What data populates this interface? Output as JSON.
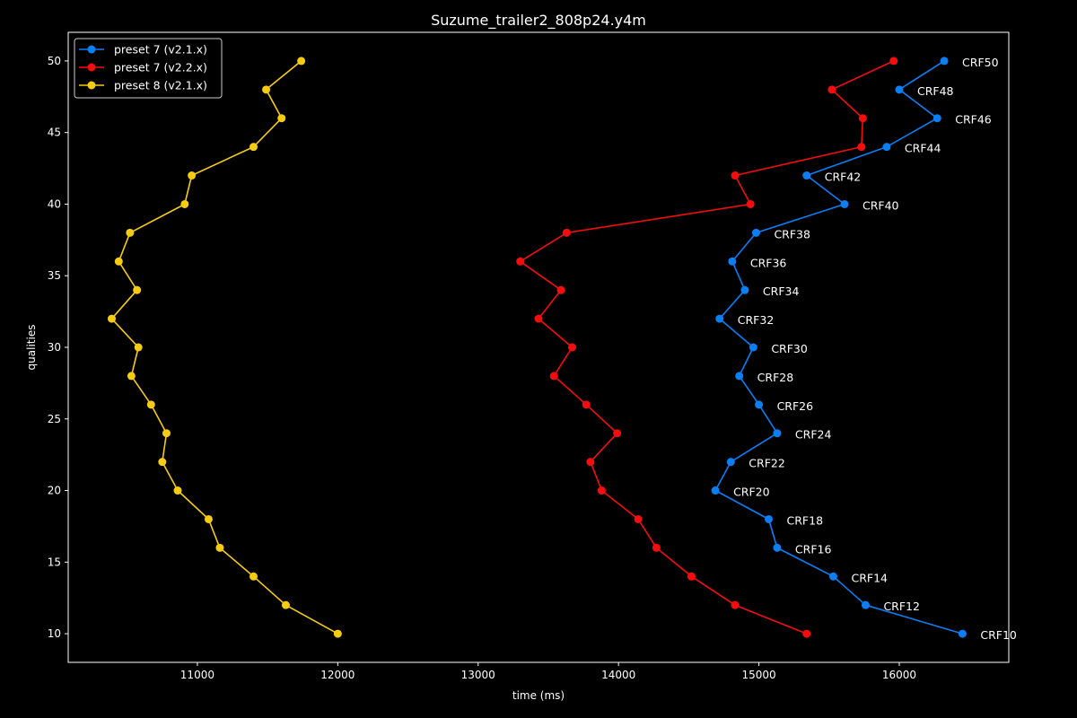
{
  "chart_data": {
    "type": "line",
    "title": "Suzume_trailer2_808p24.y4m",
    "xlabel": "time (ms)",
    "ylabel": "qualities",
    "xlim": [
      10080,
      16780
    ],
    "ylim": [
      8.0,
      52.0
    ],
    "xticks": [
      11000,
      12000,
      13000,
      14000,
      15000,
      16000
    ],
    "yticks": [
      10,
      15,
      20,
      25,
      30,
      35,
      40,
      45,
      50
    ],
    "grid": false,
    "legend_position": "top-left",
    "colors": {
      "background": "#000000",
      "axes": "#ffffff",
      "text": "#ffffff"
    },
    "series": [
      {
        "name": "preset 7 (v2.1.x)",
        "color": "#0a7ef5",
        "points": [
          [
            16450,
            10
          ],
          [
            15760,
            12
          ],
          [
            15530,
            14
          ],
          [
            15130,
            16
          ],
          [
            15070,
            18
          ],
          [
            14690,
            20
          ],
          [
            14800,
            22
          ],
          [
            15130,
            24
          ],
          [
            15000,
            26
          ],
          [
            14860,
            28
          ],
          [
            14960,
            30
          ],
          [
            14720,
            32
          ],
          [
            14900,
            34
          ],
          [
            14810,
            36
          ],
          [
            14980,
            38
          ],
          [
            15610,
            40
          ],
          [
            15340,
            42
          ],
          [
            15910,
            44
          ],
          [
            16270,
            46
          ],
          [
            16000,
            48
          ],
          [
            16320,
            50
          ]
        ]
      },
      {
        "name": "preset 7 (v2.2.x)",
        "color": "#f50d0d",
        "points": [
          [
            15340,
            10
          ],
          [
            14830,
            12
          ],
          [
            14520,
            14
          ],
          [
            14270,
            16
          ],
          [
            14140,
            18
          ],
          [
            13880,
            20
          ],
          [
            13800,
            22
          ],
          [
            13990,
            24
          ],
          [
            13770,
            26
          ],
          [
            13540,
            28
          ],
          [
            13670,
            30
          ],
          [
            13430,
            32
          ],
          [
            13590,
            34
          ],
          [
            13300,
            36
          ],
          [
            13630,
            38
          ],
          [
            14940,
            40
          ],
          [
            14830,
            42
          ],
          [
            15730,
            44
          ],
          [
            15740,
            46
          ],
          [
            15520,
            48
          ],
          [
            15960,
            50
          ]
        ]
      },
      {
        "name": "preset 8 (v2.1.x)",
        "color": "#f5cc12",
        "points": [
          [
            12000,
            10
          ],
          [
            11630,
            12
          ],
          [
            11400,
            14
          ],
          [
            11160,
            16
          ],
          [
            11080,
            18
          ],
          [
            10860,
            20
          ],
          [
            10750,
            22
          ],
          [
            10780,
            24
          ],
          [
            10670,
            26
          ],
          [
            10530,
            28
          ],
          [
            10580,
            30
          ],
          [
            10390,
            32
          ],
          [
            10570,
            34
          ],
          [
            10440,
            36
          ],
          [
            10520,
            38
          ],
          [
            10910,
            40
          ],
          [
            10960,
            42
          ],
          [
            11400,
            44
          ],
          [
            11600,
            46
          ],
          [
            11490,
            48
          ],
          [
            11740,
            50
          ]
        ]
      }
    ],
    "annotations": [
      {
        "text": "CRF10",
        "x": 16450,
        "y": 10
      },
      {
        "text": "CRF12",
        "x": 15760,
        "y": 12
      },
      {
        "text": "CRF14",
        "x": 15530,
        "y": 14
      },
      {
        "text": "CRF16",
        "x": 15130,
        "y": 16
      },
      {
        "text": "CRF18",
        "x": 15070,
        "y": 18
      },
      {
        "text": "CRF20",
        "x": 14690,
        "y": 20
      },
      {
        "text": "CRF22",
        "x": 14800,
        "y": 22
      },
      {
        "text": "CRF24",
        "x": 15130,
        "y": 24
      },
      {
        "text": "CRF26",
        "x": 15000,
        "y": 26
      },
      {
        "text": "CRF28",
        "x": 14860,
        "y": 28
      },
      {
        "text": "CRF30",
        "x": 14960,
        "y": 30
      },
      {
        "text": "CRF32",
        "x": 14720,
        "y": 32
      },
      {
        "text": "CRF34",
        "x": 14900,
        "y": 34
      },
      {
        "text": "CRF36",
        "x": 14810,
        "y": 36
      },
      {
        "text": "CRF38",
        "x": 14980,
        "y": 38
      },
      {
        "text": "CRF40",
        "x": 15610,
        "y": 40
      },
      {
        "text": "CRF42",
        "x": 15340,
        "y": 42
      },
      {
        "text": "CRF44",
        "x": 15910,
        "y": 44
      },
      {
        "text": "CRF46",
        "x": 16270,
        "y": 46
      },
      {
        "text": "CRF48",
        "x": 16000,
        "y": 48
      },
      {
        "text": "CRF50",
        "x": 16320,
        "y": 50
      }
    ]
  }
}
